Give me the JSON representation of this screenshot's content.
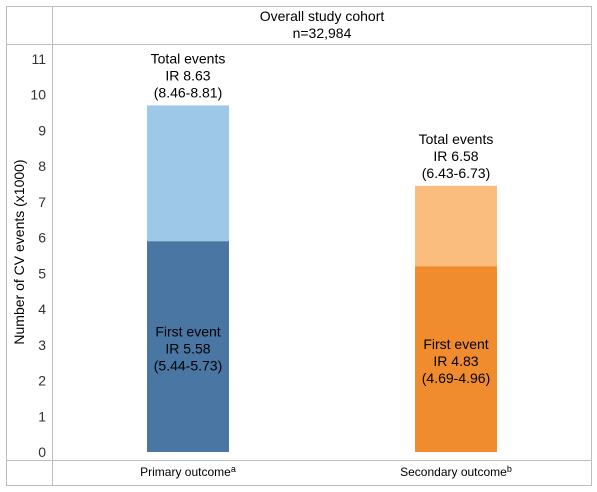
{
  "chart_data": {
    "type": "bar",
    "title": "Overall study cohort",
    "subtitle": "n=32,984",
    "ylabel": "Number of CV events (x1000)",
    "xlabel": "",
    "ylim": [
      0,
      11
    ],
    "yticks": [
      0,
      1,
      2,
      3,
      4,
      5,
      6,
      7,
      8,
      9,
      10,
      11
    ],
    "grid": false,
    "categories": [
      {
        "label": "Primary outcome",
        "sup": "a"
      },
      {
        "label": "Secondary outcome",
        "sup": "b"
      }
    ],
    "series": [
      {
        "name": "First event",
        "values": [
          5.9,
          5.2
        ],
        "colors": [
          "#4a76a4",
          "#f08c2e"
        ]
      },
      {
        "name": "Total events",
        "values": [
          9.7,
          7.45
        ],
        "colors": [
          "#9dc8e8",
          "#fbbd7d"
        ]
      }
    ],
    "annotations": {
      "total": [
        [
          "Total events",
          "IR 8.63",
          "(8.46-8.81)"
        ],
        [
          "Total events",
          "IR 6.58",
          "(6.43-6.73)"
        ]
      ],
      "first": [
        [
          "First event",
          "IR 5.58",
          "(5.44-5.73)"
        ],
        [
          "First event",
          "IR 4.83",
          "(4.69-4.96)"
        ]
      ]
    }
  }
}
